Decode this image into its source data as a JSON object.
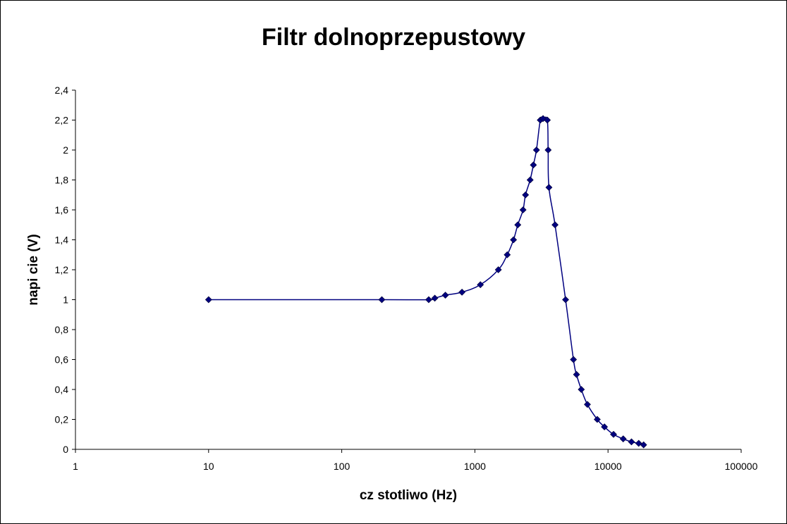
{
  "chart_data": {
    "type": "line",
    "title": "Filtr dolnoprzepustowy",
    "xlabel": "cz  stotliwo     (Hz)",
    "ylabel": "napi  cie (V)",
    "x_scale": "log",
    "xlim": [
      1,
      100000
    ],
    "ylim": [
      0,
      2.4
    ],
    "x_ticks": [
      "1",
      "10",
      "100",
      "1000",
      "10000",
      "100000"
    ],
    "y_ticks": [
      "0",
      "0,2",
      "0,4",
      "0,6",
      "0,8",
      "1",
      "1,2",
      "1,4",
      "1,6",
      "1,8",
      "2",
      "2,2",
      "2,4"
    ],
    "grid": false,
    "legend": "none",
    "series_color": "#000080",
    "marker_color": "#000080",
    "series": [
      {
        "x": [
          10,
          200,
          450,
          500,
          600,
          800,
          1100,
          1500,
          1750,
          1950,
          2100,
          2300,
          2400,
          2600,
          2750,
          2900,
          3100,
          3250,
          3500,
          3550,
          3600,
          4000,
          4800,
          5500,
          5800,
          6300,
          7000,
          8300,
          9400,
          11000,
          13000,
          15000,
          17000,
          18500
        ],
        "y": [
          1.0,
          1.0,
          1.0,
          1.01,
          1.03,
          1.05,
          1.1,
          1.2,
          1.3,
          1.4,
          1.5,
          1.6,
          1.7,
          1.8,
          1.9,
          2.0,
          2.2,
          2.21,
          2.2,
          2.0,
          1.75,
          1.5,
          1.0,
          0.6,
          0.5,
          0.4,
          0.3,
          0.2,
          0.15,
          0.1,
          0.07,
          0.05,
          0.04,
          0.03
        ]
      }
    ]
  }
}
